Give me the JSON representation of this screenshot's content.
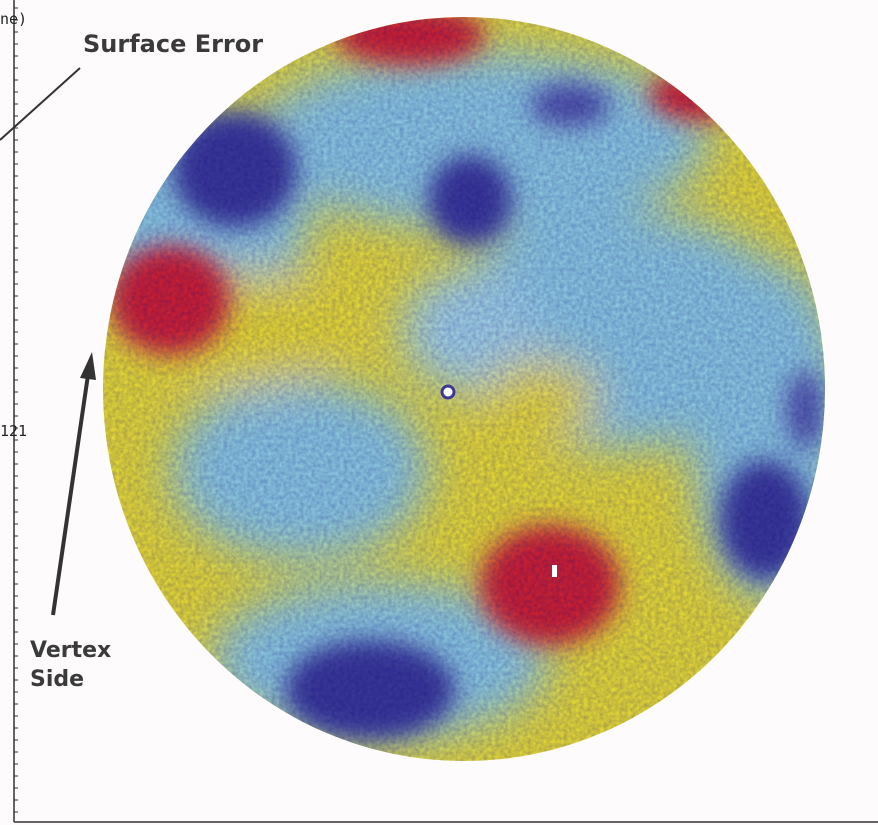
{
  "header": {
    "partial_label": "ne)"
  },
  "annotations": {
    "surface_error": "Surface Error",
    "vertex_side": [
      "Vertex",
      "Side"
    ]
  },
  "axis": {
    "tick_label": "121"
  }
}
